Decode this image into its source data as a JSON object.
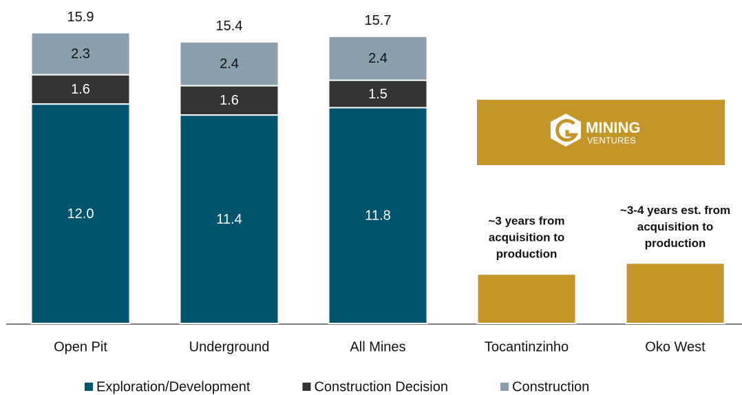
{
  "chart_data": {
    "type": "stacked_bar",
    "categories": [
      "Open Pit",
      "Underground",
      "All Mines",
      "Tocantinzinho",
      "Oko West"
    ],
    "series": [
      {
        "name": "Exploration/Development",
        "color": "#00546e",
        "label_color": "#ffffff",
        "values": [
          12.0,
          11.4,
          11.8,
          null,
          null
        ],
        "value_labels": [
          "12.0",
          "11.4",
          "11.8",
          null,
          null
        ]
      },
      {
        "name": "Construction Decision",
        "color": "#333333",
        "label_color": "#ffffff",
        "values": [
          1.6,
          1.6,
          1.5,
          null,
          null
        ]
      },
      {
        "name": "Construction",
        "color": "#8a9fab",
        "label_color": "#111111",
        "values": [
          2.3,
          2.4,
          2.4,
          null,
          null
        ]
      },
      {
        "color": "#c4962a",
        "values": [
          null,
          null,
          null,
          2.7,
          3.3
        ]
      }
    ],
    "totals": [
      15.9,
      15.4,
      15.7,
      null,
      null
    ],
    "annotations": [
      {
        "category": "Tocantinzinho",
        "lines": [
          "~3 years from",
          "acquisition to",
          "production"
        ]
      },
      {
        "category": "Oko West",
        "lines": [
          "~3-4 years est. from",
          "acquisition to",
          "production"
        ]
      }
    ],
    "logo": {
      "color": "#c4962a",
      "lines": [
        "MINING",
        "VENTURES"
      ]
    },
    "ylim": [
      0,
      17.5
    ],
    "legend": "bottom"
  }
}
